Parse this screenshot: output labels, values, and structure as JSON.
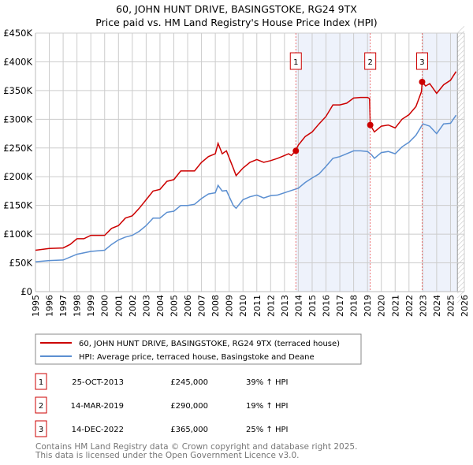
{
  "chart_data": {
    "type": "line",
    "title": "60, JOHN HUNT DRIVE, BASINGSTOKE, RG24 9TX",
    "subtitle": "Price paid vs. HM Land Registry's House Price Index (HPI)",
    "xlim": [
      1995,
      2026
    ],
    "ylim": [
      0,
      450000
    ],
    "y_ticks": [
      {
        "v": 0,
        "label": "£0"
      },
      {
        "v": 50000,
        "label": "£50K"
      },
      {
        "v": 100000,
        "label": "£100K"
      },
      {
        "v": 150000,
        "label": "£150K"
      },
      {
        "v": 200000,
        "label": "£200K"
      },
      {
        "v": 250000,
        "label": "£250K"
      },
      {
        "v": 300000,
        "label": "£300K"
      },
      {
        "v": 350000,
        "label": "£350K"
      },
      {
        "v": 400000,
        "label": "£400K"
      },
      {
        "v": 450000,
        "label": "£450K"
      }
    ],
    "x_ticks": [
      "1995",
      "1996",
      "1997",
      "1998",
      "1999",
      "2000",
      "2001",
      "2002",
      "2003",
      "2004",
      "2005",
      "2006",
      "2007",
      "2008",
      "2009",
      "2010",
      "2011",
      "2012",
      "2013",
      "2014",
      "2015",
      "2016",
      "2017",
      "2018",
      "2019",
      "2020",
      "2021",
      "2022",
      "2023",
      "2024",
      "2025",
      "2026"
    ],
    "grid": true,
    "series": [
      {
        "name": "60, JOHN HUNT DRIVE, BASINGSTOKE, RG24 9TX (terraced house)",
        "color": "#cc0000",
        "x": [
          1995,
          1996,
          1997,
          1997.5,
          1998,
          1998.5,
          1999,
          2000,
          2000.5,
          2001,
          2001.5,
          2002,
          2002.5,
          2003,
          2003.5,
          2004,
          2004.5,
          2005,
          2005.5,
          2006,
          2006.5,
          2007,
          2007.5,
          2008,
          2008.2,
          2008.5,
          2008.8,
          2009.3,
          2009.5,
          2010,
          2010.5,
          2011,
          2011.5,
          2012,
          2012.5,
          2013,
          2013.3,
          2013.5,
          2013.8,
          2014,
          2014.5,
          2015,
          2015.5,
          2016,
          2016.5,
          2017,
          2017.5,
          2018,
          2018.5,
          2019,
          2019.15,
          2019.2,
          2019.5,
          2020,
          2020.5,
          2021,
          2021.5,
          2022,
          2022.5,
          2022.9,
          2022.95,
          2023.2,
          2023.5,
          2024,
          2024.5,
          2025,
          2025.4
        ],
        "y": [
          72000,
          75000,
          76000,
          82000,
          92000,
          92000,
          98000,
          98000,
          110000,
          115000,
          128000,
          132000,
          145000,
          160000,
          175000,
          178000,
          192000,
          195000,
          210000,
          210000,
          210000,
          225000,
          235000,
          240000,
          258000,
          240000,
          245000,
          215000,
          202000,
          215000,
          225000,
          230000,
          225000,
          228000,
          232000,
          237000,
          240000,
          237000,
          245000,
          255000,
          270000,
          278000,
          292000,
          305000,
          325000,
          325000,
          328000,
          337000,
          338000,
          338000,
          336000,
          290000,
          278000,
          288000,
          290000,
          285000,
          300000,
          308000,
          322000,
          348000,
          365000,
          358000,
          362000,
          345000,
          360000,
          368000,
          383000
        ]
      },
      {
        "name": "HPI: Average price, terraced house, Basingstoke and Deane",
        "color": "#5b8fd1",
        "x": [
          1995,
          1996,
          1997,
          1998,
          1999,
          2000,
          2000.5,
          2001,
          2001.5,
          2002,
          2002.5,
          2003,
          2003.5,
          2004,
          2004.5,
          2005,
          2005.5,
          2006,
          2006.5,
          2007,
          2007.5,
          2008,
          2008.2,
          2008.5,
          2008.8,
          2009.3,
          2009.5,
          2010,
          2010.5,
          2011,
          2011.5,
          2012,
          2012.5,
          2013,
          2013.5,
          2014,
          2014.5,
          2015,
          2015.5,
          2016,
          2016.5,
          2017,
          2017.5,
          2018,
          2018.5,
          2019,
          2019.3,
          2019.5,
          2020,
          2020.5,
          2021,
          2021.5,
          2022,
          2022.5,
          2023,
          2023.5,
          2024,
          2024.5,
          2025,
          2025.4
        ],
        "y": [
          52000,
          54000,
          55000,
          65000,
          70000,
          72000,
          82000,
          90000,
          95000,
          98000,
          105000,
          115000,
          128000,
          128000,
          138000,
          140000,
          150000,
          150000,
          152000,
          162000,
          170000,
          172000,
          185000,
          175000,
          176000,
          150000,
          145000,
          160000,
          165000,
          168000,
          163000,
          167000,
          168000,
          172000,
          176000,
          180000,
          190000,
          198000,
          205000,
          218000,
          232000,
          235000,
          240000,
          245000,
          245000,
          244000,
          238000,
          232000,
          242000,
          244000,
          240000,
          252000,
          260000,
          272000,
          292000,
          288000,
          275000,
          292000,
          293000,
          307000
        ]
      }
    ],
    "sales": [
      {
        "id": "1",
        "x": 2013.82,
        "y": 245000,
        "date": "25-OCT-2013",
        "price": "£245,000",
        "hpi": "39% ↑ HPI"
      },
      {
        "id": "2",
        "x": 2019.2,
        "y": 290000,
        "date": "14-MAR-2019",
        "price": "£290,000",
        "hpi": "19% ↑ HPI"
      },
      {
        "id": "3",
        "x": 2022.95,
        "y": 365000,
        "date": "14-DEC-2022",
        "price": "£365,000",
        "hpi": "25% ↑ HPI"
      }
    ],
    "shaded_ranges": [
      [
        2013.82,
        2019.2
      ],
      [
        2022.95,
        2025.5
      ]
    ],
    "forecast_start": 2025.5
  },
  "footer": [
    "Contains HM Land Registry data © Crown copyright and database right 2025.",
    "This data is licensed under the Open Government Licence v3.0."
  ]
}
